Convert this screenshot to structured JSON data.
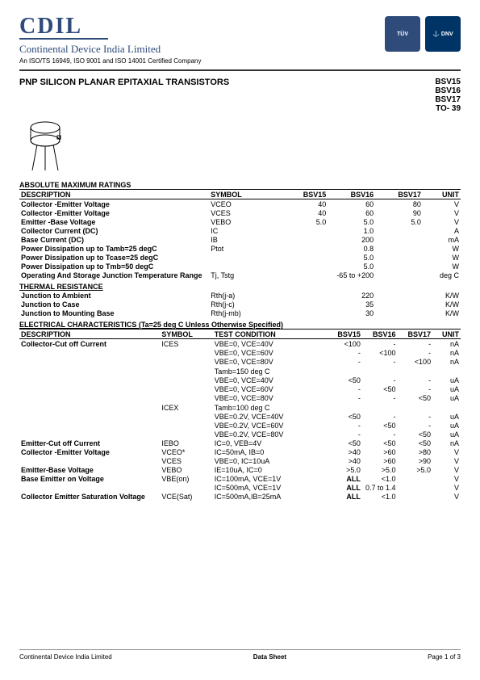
{
  "header": {
    "logo": "CDIL",
    "company": "Continental Device India Limited",
    "cert": "An ISO/TS 16949, ISO 9001 and ISO 14001 Certified Company",
    "badge_tuv": "TÜV",
    "badge_anchor": "⚓\nDNV"
  },
  "title": "PNP SILICON PLANAR EPITAXIAL TRANSISTORS",
  "parts": [
    "BSV15",
    "BSV16",
    "BSV17",
    "TO- 39"
  ],
  "amr": {
    "heading": "ABSOLUTE MAXIMUM RATINGS",
    "cols": [
      "DESCRIPTION",
      "SYMBOL",
      "BSV15",
      "BSV16",
      "BSV17",
      "UNIT"
    ],
    "rows": [
      [
        "Collector -Emitter Voltage",
        "VCEO",
        "40",
        "60",
        "80",
        "V"
      ],
      [
        "Collector -Emitter Voltage",
        "VCES",
        "40",
        "60",
        "90",
        "V"
      ],
      [
        "Emitter -Base Voltage",
        "VEBO",
        "5.0",
        "5.0",
        "5.0",
        "V"
      ],
      [
        "Collector Current (DC)",
        "IC",
        "",
        "1.0",
        "",
        "A"
      ],
      [
        "Base Current (DC)",
        "IB",
        "",
        "200",
        "",
        "mA"
      ],
      [
        "Power Dissipation up to Tamb=25 degC",
        "Ptot",
        "",
        "0.8",
        "",
        "W"
      ],
      [
        "Power Dissipation up to Tcase=25 degC",
        "",
        "",
        "5.0",
        "",
        "W"
      ],
      [
        "Power Dissipation up to Tmb=50 degC",
        "",
        "",
        "5.0",
        "",
        "W"
      ],
      [
        "Operating And Storage Junction Temperature Range",
        "Tj, Tstg",
        "",
        "-65 to +200",
        "",
        "deg C"
      ]
    ]
  },
  "thermal": {
    "heading": "THERMAL RESISTANCE",
    "rows": [
      [
        "Junction to Ambient",
        "Rth(j-a)",
        "",
        "220",
        "",
        "K/W"
      ],
      [
        "Junction to Case",
        "Rth(j-c)",
        "",
        "35",
        "",
        "K/W"
      ],
      [
        "Junction to Mounting Base",
        "Rth(j-mb)",
        "",
        "30",
        "",
        "K/W"
      ]
    ]
  },
  "elec": {
    "heading": "ELECTRICAL CHARACTERISTICS (Ta=25 deg C Unless Otherwise Specified)",
    "cols": [
      "DESCRIPTION",
      "SYMBOL",
      "TEST CONDITION",
      "BSV15",
      "BSV16",
      "BSV17",
      "UNIT"
    ],
    "rows": [
      [
        "Collector-Cut off Current",
        "ICES",
        "VBE=0, VCE=40V",
        "<100",
        "-",
        "-",
        "nA"
      ],
      [
        "",
        "",
        "VBE=0, VCE=60V",
        "-",
        "<100",
        "-",
        "nA"
      ],
      [
        "",
        "",
        "VBE=0, VCE=80V",
        "-",
        "-",
        "<100",
        "nA"
      ],
      [
        "",
        "",
        "",
        "",
        "",
        "",
        ""
      ],
      [
        "",
        "",
        "Tamb=150 deg C",
        "",
        "",
        "",
        ""
      ],
      [
        "",
        "",
        "VBE=0, VCE=40V",
        "<50",
        "-",
        "-",
        "uA"
      ],
      [
        "",
        "",
        "VBE=0, VCE=60V",
        "-",
        "<50",
        "-",
        "uA"
      ],
      [
        "",
        "",
        "VBE=0, VCE=80V",
        "-",
        "-",
        "<50",
        "uA"
      ],
      [
        "",
        "",
        "",
        "",
        "",
        "",
        ""
      ],
      [
        "",
        "ICEX",
        "Tamb=100 deg C",
        "",
        "",
        "",
        ""
      ],
      [
        "",
        "",
        "VBE=0.2V, VCE=40V",
        "<50",
        "-",
        "-",
        "uA"
      ],
      [
        "",
        "",
        "VBE=0.2V, VCE=60V",
        "-",
        "<50",
        "-",
        "uA"
      ],
      [
        "",
        "",
        "VBE=0.2V, VCE=80V",
        "-",
        "-",
        "<50",
        "uA"
      ],
      [
        "Emitter-Cut off Current",
        "IEBO",
        "IC=0, VEB=4V",
        "<50",
        "<50",
        "<50",
        "nA"
      ],
      [
        "Collector -Emitter Voltage",
        "VCEO*",
        "IC=50mA, IB=0",
        ">40",
        ">60",
        ">80",
        "V"
      ],
      [
        "",
        "VCES",
        "VBE=0, IC=10uA",
        ">40",
        ">60",
        ">90",
        "V"
      ],
      [
        "Emitter-Base Voltage",
        "VEBO",
        "IE=10uA, IC=0",
        ">5.0",
        ">5.0",
        ">5.0",
        "V"
      ],
      [
        "Base Emitter on Voltage",
        "VBE(on)",
        "IC=100mA, VCE=1V",
        "ALL",
        "<1.0",
        "",
        "V"
      ],
      [
        "",
        "",
        "IC=500mA, VCE=1V",
        "ALL",
        "0.7 to 1.4",
        "",
        "V"
      ],
      [
        "Collector Emitter Saturation Voltage",
        "VCE(Sat)",
        "IC=500mA,IB=25mA",
        "ALL",
        "<1.0",
        "",
        "V"
      ]
    ]
  },
  "footer": {
    "left": "Continental Device India Limited",
    "center": "Data Sheet",
    "right": "Page 1 of 3"
  }
}
